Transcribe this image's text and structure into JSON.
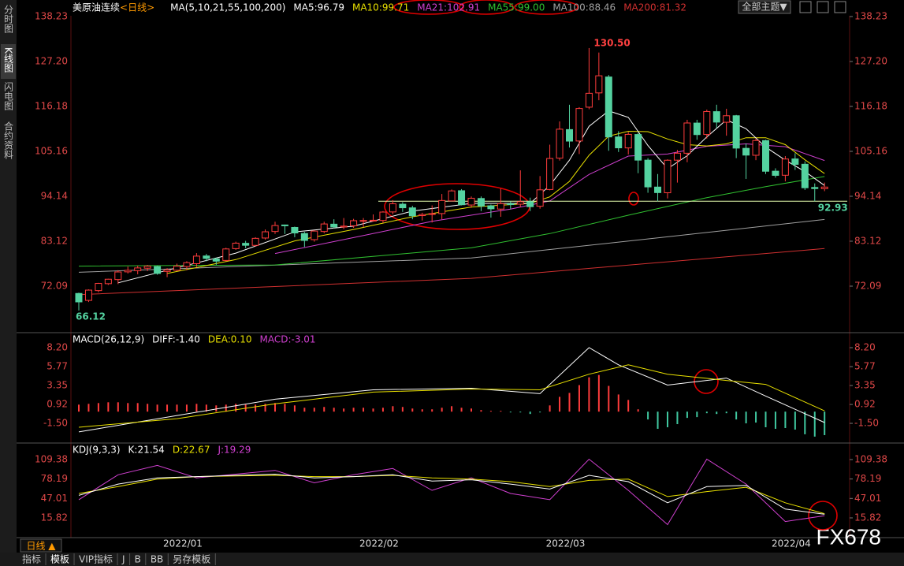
{
  "ui": {
    "side_tabs": [
      "分时图",
      "K线图",
      "闪电图",
      "合约资料"
    ],
    "theme_button": "全部主题▼",
    "period_button": "日线 ▲",
    "bottom_tabs": [
      "指标",
      "模板",
      "VIP指标",
      "J",
      "B",
      "BB",
      "另存模板"
    ],
    "watermark": "FX678"
  },
  "chart_data": [
    {
      "type": "candlestick",
      "title": "美原油连续",
      "period": "<日线>",
      "ma_header": "MA(5,10,21,55,100,200)",
      "categories": [
        null,
        null,
        null,
        null,
        null,
        null,
        null,
        null,
        null,
        "2022/01",
        null,
        null,
        null,
        null,
        null,
        null,
        null,
        null,
        null,
        null,
        null,
        null,
        null,
        null,
        null,
        null,
        null,
        null,
        null,
        "2022/02",
        null,
        null,
        null,
        null,
        null,
        null,
        null,
        null,
        null,
        null,
        null,
        null,
        null,
        null,
        null,
        null,
        null,
        null,
        "2022/03",
        null,
        null,
        null,
        null,
        null,
        null,
        null,
        null,
        null,
        null,
        null,
        null,
        null,
        null,
        null,
        null,
        null,
        null,
        null,
        null,
        null,
        null,
        "2022/04",
        null,
        null,
        null,
        null,
        null
      ],
      "open": [
        70.3,
        68.6,
        71.0,
        72.7,
        73.7,
        75.6,
        75.9,
        76.5,
        76.9,
        75.7,
        76.0,
        76.9,
        77.6,
        79.5,
        78.8,
        78.4,
        81.3,
        82.6,
        82.1,
        83.9,
        85.5,
        87.1,
        86.5,
        85.0,
        83.5,
        85.5,
        87.3,
        86.6,
        86.9,
        88.2,
        88.2,
        88.2,
        90.3,
        92.2,
        91.3,
        89.4,
        89.7,
        89.9,
        93.0,
        95.5,
        92.0,
        93.6,
        91.8,
        91.0,
        92.3,
        92.2,
        92.8,
        91.7,
        95.8,
        103.5,
        110.5,
        107.7,
        116.0,
        119.5,
        123.4,
        108.7,
        106.0,
        109.3,
        103.0,
        96.4,
        95.0,
        103.0,
        104.7,
        112.1,
        109.3,
        114.9,
        112.3,
        113.9,
        105.9,
        104.2,
        107.8,
        100.3,
        99.3,
        103.3,
        102.0,
        96.3,
        96.0
      ],
      "high": [
        70.5,
        71.3,
        72.9,
        73.9,
        76.0,
        76.9,
        77.1,
        77.3,
        77.1,
        76.5,
        77.6,
        78.2,
        80.2,
        80.0,
        79.1,
        81.5,
        83.0,
        83.2,
        84.1,
        86.0,
        87.9,
        87.2,
        86.7,
        85.4,
        85.8,
        87.9,
        88.5,
        88.8,
        88.6,
        88.8,
        89.7,
        90.5,
        93.2,
        92.7,
        91.8,
        90.1,
        91.9,
        94.7,
        95.8,
        95.9,
        94.1,
        94.1,
        92.1,
        96.0,
        92.9,
        100.5,
        93.8,
        99.1,
        106.8,
        112.5,
        116.6,
        116.0,
        130.5,
        129.4,
        123.9,
        110.1,
        109.9,
        109.7,
        103.5,
        99.6,
        103.2,
        105.5,
        112.9,
        112.9,
        115.4,
        116.6,
        115.6,
        114.1,
        107.1,
        108.3,
        108.0,
        101.0,
        104.0,
        104.7,
        102.7,
        97.3,
        97.5
      ],
      "low": [
        66.12,
        68.2,
        70.6,
        72.4,
        72.6,
        75.2,
        75.0,
        75.8,
        74.9,
        74.3,
        75.8,
        76.0,
        76.8,
        78.2,
        77.3,
        78.2,
        81.0,
        81.4,
        81.8,
        83.5,
        84.9,
        84.9,
        84.1,
        81.7,
        83.0,
        85.1,
        86.3,
        86.1,
        86.4,
        86.6,
        87.9,
        87.6,
        89.7,
        90.3,
        88.5,
        88.2,
        87.7,
        88.5,
        92.9,
        91.9,
        91.3,
        90.5,
        88.9,
        89.1,
        91.0,
        91.5,
        90.5,
        91.1,
        95.6,
        102.9,
        106.1,
        104.5,
        115.5,
        117.7,
        105.3,
        105.0,
        104.4,
        99.8,
        95.0,
        92.9,
        93.6,
        97.5,
        102.5,
        108.0,
        108.3,
        110.9,
        109.0,
        103.5,
        98.4,
        103.0,
        99.6,
        98.7,
        97.8,
        100.6,
        95.7,
        92.93,
        95.4
      ],
      "close": [
        68.23,
        71.12,
        72.76,
        73.79,
        75.57,
        75.98,
        76.56,
        76.99,
        75.21,
        76.08,
        76.99,
        77.85,
        79.46,
        78.9,
        78.23,
        81.22,
        82.64,
        82.12,
        83.82,
        85.43,
        86.96,
        86.9,
        85.14,
        83.31,
        85.6,
        87.35,
        86.61,
        86.82,
        88.15,
        88.2,
        88.26,
        90.27,
        92.31,
        91.32,
        89.36,
        89.66,
        89.88,
        93.1,
        95.46,
        92.07,
        93.66,
        91.76,
        91.07,
        92.35,
        92.1,
        92.81,
        91.59,
        95.72,
        103.41,
        110.6,
        107.67,
        115.68,
        119.4,
        123.7,
        108.7,
        106.02,
        109.33,
        103.01,
        96.44,
        95.04,
        102.98,
        104.7,
        112.12,
        109.27,
        114.93,
        112.34,
        113.9,
        105.96,
        104.24,
        107.82,
        100.28,
        99.27,
        103.28,
        101.96,
        96.23,
        96.03,
        96.4
      ],
      "up_color": "#ff3c3c",
      "down_color": "#54d2a0",
      "ylim": [
        61.07,
        138.42
      ],
      "yticks": [
        72.09,
        83.12,
        94.14,
        105.16,
        116.18,
        {
          "value": 127.2,
          "label": "127.20"
        },
        138.23
      ],
      "lines": [
        {
          "name": "MA5:96.79",
          "color": "#ffffff",
          "x": [
            4,
            10,
            16,
            22,
            28,
            34,
            40,
            46,
            48,
            50,
            52,
            54,
            56,
            58,
            60,
            62,
            64,
            66,
            68,
            70,
            72,
            74,
            76
          ],
          "values": [
            72.9,
            76.6,
            80.2,
            85.4,
            86.8,
            90.5,
            92.4,
            92.4,
            96.8,
            103.0,
            111.3,
            115.1,
            113.5,
            106.6,
            100.9,
            104.1,
            108.7,
            112.9,
            110.7,
            106.2,
            103.0,
            100.2,
            96.79
          ]
        },
        {
          "name": "MA10:99.71",
          "color": "#e8e000",
          "x": [
            9,
            16,
            22,
            28,
            34,
            40,
            46,
            48,
            50,
            52,
            54,
            56,
            58,
            60,
            62,
            64,
            66,
            68,
            70,
            72,
            74,
            76
          ],
          "values": [
            75.2,
            78.6,
            83.2,
            86.0,
            89.1,
            91.5,
            92.4,
            94.0,
            97.8,
            104.2,
            108.9,
            110.1,
            110.0,
            108.2,
            106.8,
            106.5,
            107.0,
            108.5,
            108.5,
            106.8,
            103.1,
            99.71
          ]
        },
        {
          "name": "MA21:102.91",
          "color": "#d040d0",
          "x": [
            20,
            28,
            36,
            44,
            48,
            52,
            56,
            60,
            64,
            68,
            72,
            76
          ],
          "values": [
            80.1,
            84.0,
            88.0,
            91.0,
            93.0,
            99.5,
            104.0,
            104.5,
            106.4,
            107.0,
            106.3,
            102.91
          ]
        },
        {
          "name": "MA55:99.00",
          "color": "#30c030",
          "x": [
            0,
            20,
            40,
            48,
            56,
            64,
            70,
            76
          ],
          "values": [
            77.0,
            77.3,
            81.5,
            85.0,
            89.5,
            93.8,
            96.5,
            99.0
          ]
        },
        {
          "name": "MA100:88.46",
          "color": "#a0a0a0",
          "x": [
            0,
            40,
            60,
            76
          ],
          "values": [
            75.5,
            79.0,
            84.2,
            88.46
          ]
        },
        {
          "name": "MA200:81.32",
          "color": "#d03030",
          "x": [
            0,
            40,
            76
          ],
          "values": [
            70.0,
            74.0,
            81.32
          ]
        }
      ],
      "annotations": {
        "high": {
          "value": 130.5,
          "label": "130.50"
        },
        "low": 66.12,
        "support": 92.93
      }
    },
    {
      "type": "macd",
      "header": "MACD(26,12,9)",
      "ylim": [
        -3.82,
        9.82
      ],
      "yticks": [
        {
          "value": 8.2,
          "label": "8.20"
        },
        5.77,
        3.35,
        0.92,
        {
          "value": -1.5,
          "label": "-1.50"
        }
      ],
      "series": [
        {
          "name": "DIFF:-1.40",
          "color": "#ffffff",
          "x": [
            0,
            10,
            20,
            30,
            40,
            47,
            52,
            55,
            60,
            66,
            70,
            76
          ],
          "values": [
            -2.6,
            -0.5,
            1.6,
            2.8,
            3.0,
            2.3,
            8.2,
            6.0,
            3.4,
            4.3,
            2.0,
            -1.4
          ]
        },
        {
          "name": "DEA:0.10",
          "color": "#e8e000",
          "x": [
            0,
            10,
            20,
            30,
            40,
            47,
            52,
            56,
            60,
            66,
            70,
            76
          ],
          "values": [
            -2.0,
            -0.9,
            1.0,
            2.5,
            2.9,
            2.8,
            4.8,
            6.0,
            4.8,
            4.0,
            3.5,
            0.1
          ]
        }
      ],
      "histogram": {
        "name": "MACD:-3.01",
        "color": "#d040d0",
        "up_color": "#ff3c3c",
        "down_color": "#40c8a0",
        "values": [
          0.9,
          1.0,
          1.1,
          1.2,
          1.2,
          1.1,
          1.1,
          1.0,
          0.9,
          0.9,
          0.9,
          0.9,
          1.0,
          0.9,
          0.8,
          0.9,
          1.0,
          0.9,
          0.9,
          1.0,
          1.1,
          1.0,
          0.8,
          0.5,
          0.5,
          0.6,
          0.5,
          0.4,
          0.5,
          0.5,
          0.4,
          0.5,
          0.7,
          0.6,
          0.4,
          0.3,
          0.3,
          0.5,
          0.7,
          0.5,
          0.4,
          0.2,
          0.1,
          0.1,
          -0.1,
          -0.1,
          -0.3,
          -0.1,
          0.8,
          1.9,
          2.4,
          3.4,
          4.4,
          4.7,
          3.3,
          2.2,
          1.5,
          0.3,
          -1.0,
          -2.2,
          -2.0,
          -1.6,
          -0.8,
          -0.7,
          -0.2,
          -0.3,
          -0.2,
          -1.0,
          -1.5,
          -1.4,
          -2.0,
          -2.2,
          -2.1,
          -2.3,
          -2.9,
          -3.2,
          -3.01
        ]
      }
    },
    {
      "type": "line",
      "header": "KDJ(9,3,3)",
      "ylim": [
        -13.3,
        132.1
      ],
      "yticks": [
        109.38,
        78.19,
        47.01,
        15.82
      ],
      "series": [
        {
          "name": "K:21.54",
          "color": "#ffffff",
          "x": [
            0,
            4,
            8,
            12,
            16,
            20,
            24,
            28,
            32,
            36,
            40,
            44,
            48,
            52,
            56,
            60,
            64,
            68,
            72,
            76
          ],
          "values": [
            52,
            70,
            80,
            82,
            84,
            86,
            80,
            82,
            85,
            75,
            77,
            70,
            62,
            84,
            74,
            40,
            66,
            68,
            30,
            21.54
          ]
        },
        {
          "name": "D:22.67",
          "color": "#e8e000",
          "x": [
            0,
            4,
            8,
            12,
            16,
            20,
            24,
            28,
            32,
            36,
            40,
            44,
            48,
            52,
            56,
            60,
            64,
            68,
            72,
            76
          ],
          "values": [
            55,
            66,
            78,
            82,
            83,
            84,
            82,
            82,
            84,
            80,
            78,
            74,
            66,
            76,
            78,
            50,
            58,
            65,
            40,
            22.67
          ]
        },
        {
          "name": "J:19.29",
          "color": "#d040d0",
          "x": [
            0,
            4,
            8,
            12,
            16,
            20,
            24,
            28,
            32,
            36,
            40,
            44,
            48,
            52,
            56,
            60,
            64,
            68,
            72,
            76
          ],
          "values": [
            45,
            85,
            100,
            80,
            86,
            92,
            72,
            85,
            95,
            60,
            80,
            55,
            45,
            110,
            60,
            5,
            110,
            70,
            10,
            19.29
          ]
        }
      ]
    }
  ]
}
